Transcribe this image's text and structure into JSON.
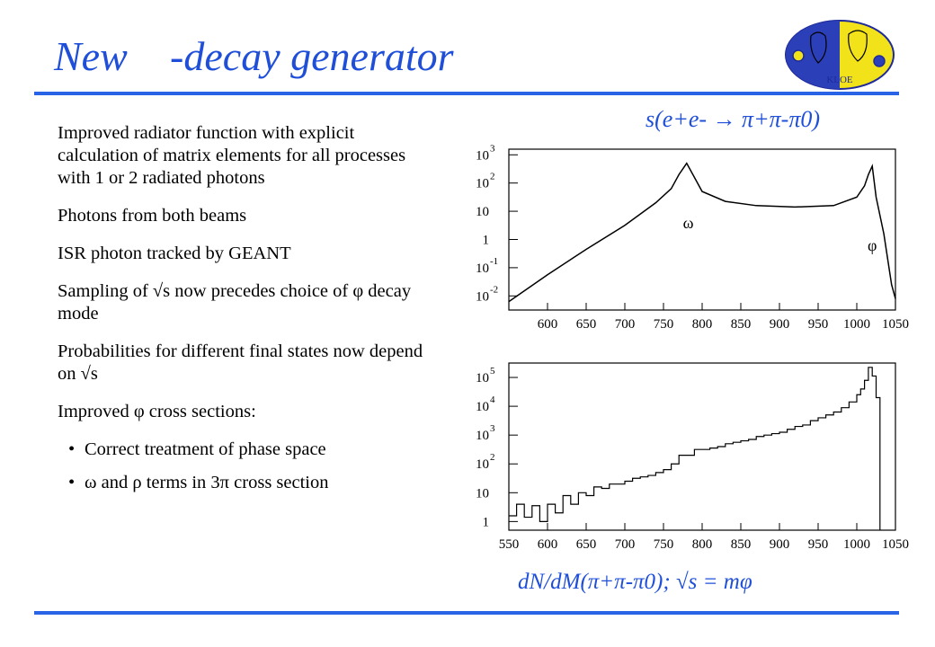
{
  "slide": {
    "title": "New -decay generator",
    "top_label": "s(e+e- → π+π-π0)",
    "bottom_label": "dN/dM(π+π-π0); √s = mφ",
    "colors": {
      "title": "#1f4fd8",
      "rule": "#2a64e6"
    },
    "logo_text": "KLOE"
  },
  "bullets": [
    {
      "text": "Improved radiator function with explicit calculation of matrix elements for all processes with 1 or 2 radiated photons"
    },
    {
      "text": "Photons from both beams"
    },
    {
      "text": "ISR photon tracked by GEANT"
    },
    {
      "text": "Sampling of √s now precedes choice of φ decay mode"
    },
    {
      "text": "Probabilities for different final states now depend on √s"
    },
    {
      "text": "Improved φ cross sections:"
    }
  ],
  "sub_bullets": [
    {
      "text": "Correct treatment of phase space"
    },
    {
      "text": "ω and ρ terms in 3π cross section"
    }
  ],
  "chart_data": [
    {
      "type": "line",
      "xlim": [
        550,
        1050
      ],
      "ylim_log10": [
        -2.5,
        3.2
      ],
      "x_ticks": [
        600,
        650,
        700,
        750,
        800,
        850,
        900,
        950,
        1000,
        1050
      ],
      "y_ticks": [
        {
          "exp": 3,
          "label": "10",
          "sup": "3"
        },
        {
          "exp": 2,
          "label": "10",
          "sup": "2"
        },
        {
          "exp": 1,
          "label": "10",
          "sup": ""
        },
        {
          "exp": 0,
          "label": "1",
          "sup": ""
        },
        {
          "exp": -1,
          "label": "10",
          "sup": "-1"
        },
        {
          "exp": -2,
          "label": "10",
          "sup": "-2"
        }
      ],
      "annotations": [
        {
          "text": "ω",
          "x": 782,
          "y_log10": 0.4
        },
        {
          "text": "φ",
          "x": 1020,
          "y_log10": -0.4
        }
      ],
      "series": [
        {
          "x": [
            550,
            600,
            650,
            700,
            740,
            760,
            770,
            780,
            790,
            800,
            830,
            870,
            920,
            970,
            1000,
            1010,
            1015,
            1020,
            1025,
            1035,
            1045,
            1050
          ],
          "log10_y": [
            -2.2,
            -1.25,
            -0.35,
            0.5,
            1.3,
            1.8,
            2.3,
            2.7,
            2.2,
            1.7,
            1.35,
            1.2,
            1.15,
            1.2,
            1.5,
            1.9,
            2.3,
            2.6,
            1.5,
            0.2,
            -1.6,
            -2.1
          ]
        }
      ]
    },
    {
      "type": "histogram",
      "xlim": [
        550,
        1050
      ],
      "ylim_log10": [
        -0.3,
        5.5
      ],
      "x_ticks": [
        550,
        600,
        650,
        700,
        750,
        800,
        850,
        900,
        950,
        1000,
        1050
      ],
      "y_ticks": [
        {
          "exp": 5,
          "label": "10",
          "sup": "5"
        },
        {
          "exp": 4,
          "label": "10",
          "sup": "4"
        },
        {
          "exp": 3,
          "label": "10",
          "sup": "3"
        },
        {
          "exp": 2,
          "label": "10",
          "sup": "2"
        },
        {
          "exp": 1,
          "label": "10",
          "sup": ""
        },
        {
          "exp": 0,
          "label": "1",
          "sup": ""
        }
      ],
      "x": [
        550,
        560,
        570,
        580,
        590,
        600,
        610,
        620,
        630,
        640,
        650,
        660,
        670,
        680,
        690,
        700,
        710,
        720,
        730,
        740,
        750,
        760,
        770,
        780,
        790,
        800,
        810,
        820,
        830,
        840,
        850,
        860,
        870,
        880,
        890,
        900,
        910,
        920,
        930,
        940,
        950,
        960,
        970,
        980,
        990,
        1000,
        1005,
        1010,
        1015,
        1020,
        1025,
        1030
      ],
      "log10_y": [
        0.2,
        0.6,
        0.15,
        0.55,
        0.0,
        0.6,
        0.3,
        0.9,
        0.6,
        1.0,
        0.9,
        1.2,
        1.15,
        1.3,
        1.3,
        1.4,
        1.5,
        1.55,
        1.6,
        1.7,
        1.8,
        2.0,
        2.3,
        2.3,
        2.5,
        2.5,
        2.55,
        2.6,
        2.7,
        2.75,
        2.8,
        2.85,
        2.95,
        3.0,
        3.05,
        3.1,
        3.2,
        3.3,
        3.35,
        3.5,
        3.6,
        3.7,
        3.8,
        3.95,
        4.15,
        4.4,
        4.6,
        4.9,
        5.35,
        5.05,
        4.3,
        0
      ]
    }
  ]
}
